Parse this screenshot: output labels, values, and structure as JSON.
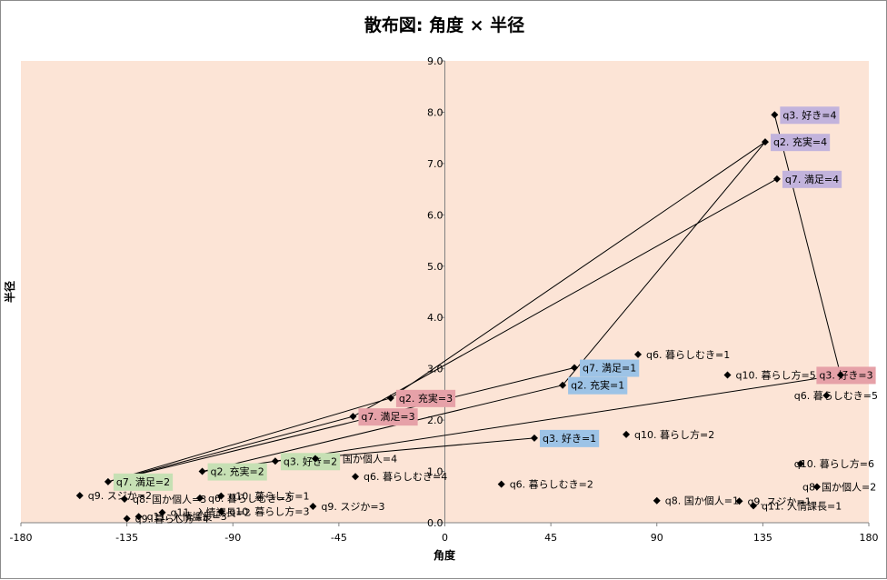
{
  "chart_data": {
    "type": "scatter",
    "title": "散布図: 角度 × 半径",
    "xlabel": "角度",
    "ylabel": "半径",
    "xlim": [
      -180,
      180
    ],
    "ylim": [
      0,
      9
    ],
    "x_ticks": [
      "-180",
      "-135",
      "-90",
      "-45",
      "0",
      "45",
      "90",
      "135",
      "180"
    ],
    "y_ticks": [
      "0.0",
      "1.0",
      "2.0",
      "3.0",
      "4.0",
      "5.0",
      "6.0",
      "7.0",
      "8.0",
      "9.0"
    ],
    "colors": {
      "plot_bg": "#fce4d6",
      "label_green": "#c6e0b4",
      "label_red": "#e6a1a8",
      "label_blue": "#9dc3e6",
      "label_purple": "#c2b3dc",
      "marker": "#000000"
    },
    "points": [
      {
        "x": 140,
        "y": 7.95,
        "label": "q3. 好き=4",
        "bg": "purple"
      },
      {
        "x": 136,
        "y": 7.42,
        "label": "q2. 充実=4",
        "bg": "purple"
      },
      {
        "x": 141,
        "y": 6.7,
        "label": "q7. 満足=4",
        "bg": "purple"
      },
      {
        "x": 82,
        "y": 3.28,
        "label": "q6. 暮らしむき=1",
        "bg": ""
      },
      {
        "x": 55,
        "y": 3.02,
        "label": "q7. 満足=1",
        "bg": "blue"
      },
      {
        "x": 50,
        "y": 2.68,
        "label": "q2. 充実=1",
        "bg": "blue"
      },
      {
        "x": 120,
        "y": 2.88,
        "label": "q10. 暮らし方=5",
        "bg": ""
      },
      {
        "x": 168,
        "y": 2.88,
        "label": "q3. 好き=3",
        "bg": "red"
      },
      {
        "x": 162,
        "y": 2.48,
        "label": "q6. 暮らしむき=5",
        "bg": ""
      },
      {
        "x": -23,
        "y": 2.43,
        "label": "q2. 充実=3",
        "bg": "red"
      },
      {
        "x": -39,
        "y": 2.07,
        "label": "q7. 満足=3",
        "bg": "red"
      },
      {
        "x": 77,
        "y": 1.72,
        "label": "q10. 暮らし方=2",
        "bg": ""
      },
      {
        "x": 38,
        "y": 1.65,
        "label": "q3. 好き=1",
        "bg": "blue"
      },
      {
        "x": 151,
        "y": 1.15,
        "label": "q10. 暮らし方=6",
        "bg": ""
      },
      {
        "x": -55,
        "y": 1.25,
        "label": "q8. 国か個人=4",
        "bg": ""
      },
      {
        "x": -72,
        "y": 1.2,
        "label": "q3. 好き=2",
        "bg": "green"
      },
      {
        "x": -38,
        "y": 0.9,
        "label": "q6. 暮らしむき=4",
        "bg": ""
      },
      {
        "x": -103,
        "y": 1.0,
        "label": "q2. 充実=2",
        "bg": "green"
      },
      {
        "x": -143,
        "y": 0.8,
        "label": "q7. 満足=2",
        "bg": "green"
      },
      {
        "x": 24,
        "y": 0.75,
        "label": "q6. 暮らしむき=2",
        "bg": ""
      },
      {
        "x": 158,
        "y": 0.7,
        "label": "q8. 国か個人=2",
        "bg": ""
      },
      {
        "x": -155,
        "y": 0.53,
        "label": "q9. スジか=2",
        "bg": ""
      },
      {
        "x": -136,
        "y": 0.46,
        "label": "q8. 国か個人=3",
        "bg": ""
      },
      {
        "x": -104,
        "y": 0.48,
        "label": "q6. 暮らしむき=3",
        "bg": ""
      },
      {
        "x": -95,
        "y": 0.52,
        "label": "q10. 暮らし方=1",
        "bg": ""
      },
      {
        "x": -95,
        "y": 0.22,
        "label": "q10. 暮らし方=3",
        "bg": ""
      },
      {
        "x": -56,
        "y": 0.32,
        "label": "q9. スジか=3",
        "bg": ""
      },
      {
        "x": -120,
        "y": 0.2,
        "label": "q11. 入情課長=2",
        "bg": ""
      },
      {
        "x": -130,
        "y": 0.12,
        "label": "q11. 入情課長=3",
        "bg": ""
      },
      {
        "x": -135,
        "y": 0.08,
        "label": "q9. 暮らし方=4",
        "bg": ""
      },
      {
        "x": 90,
        "y": 0.43,
        "label": "q8. 国か個人=1",
        "bg": ""
      },
      {
        "x": 125,
        "y": 0.42,
        "label": "q9. スジか=1",
        "bg": ""
      },
      {
        "x": 131,
        "y": 0.33,
        "label": "q11. 入情課長=1",
        "bg": ""
      }
    ],
    "lines": [
      [
        [
          -143,
          0.8
        ],
        [
          -23,
          2.43
        ],
        [
          136,
          7.42
        ],
        [
          50,
          2.68
        ],
        [
          -103,
          1.0
        ]
      ],
      [
        [
          -143,
          0.8
        ],
        [
          -39,
          2.07
        ],
        [
          141,
          6.7
        ]
      ],
      [
        [
          -143,
          0.8
        ],
        [
          55,
          3.02
        ]
      ],
      [
        [
          -103,
          1.0
        ],
        [
          -72,
          1.2
        ],
        [
          168,
          2.88
        ],
        [
          140,
          7.95
        ]
      ],
      [
        [
          -72,
          1.2
        ],
        [
          38,
          1.65
        ]
      ]
    ]
  }
}
